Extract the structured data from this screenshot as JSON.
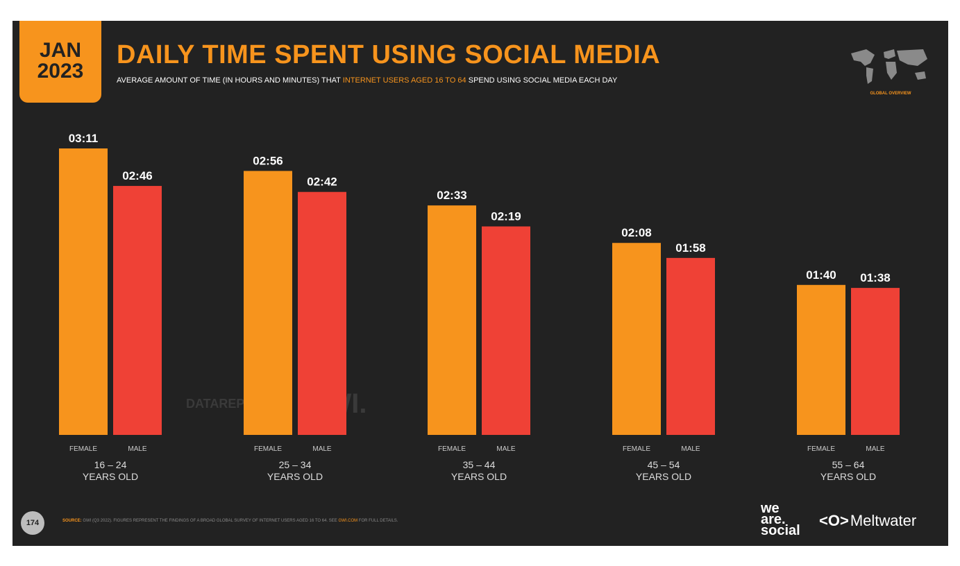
{
  "header": {
    "date_month": "JAN",
    "date_year": "2023",
    "title": "DAILY TIME SPENT USING SOCIAL MEDIA",
    "subtitle_pre": "AVERAGE AMOUNT OF TIME (IN HOURS AND MINUTES) THAT ",
    "subtitle_highlight": "INTERNET USERS AGED 16 TO 64",
    "subtitle_post": " SPEND USING SOCIAL MEDIA EACH DAY",
    "global_overview": "GLOBAL OVERVIEW"
  },
  "watermark": {
    "datareportal": "DATAREPORTAL",
    "gwi": "GWI."
  },
  "footer": {
    "page_number": "174",
    "source_label": "SOURCE:",
    "source_text": " GWI (Q3 2022). FIGURES REPRESENT THE FINDINGS OF A BROAD GLOBAL SURVEY OF INTERNET USERS AGED 16 TO 64. SEE ",
    "source_link": "GWI.COM",
    "source_end": " FOR FULL DETAILS.",
    "brand_we": "we",
    "brand_are": "are.",
    "brand_social": "social",
    "meltwater_icon": "<O>",
    "meltwater": "Meltwater"
  },
  "colors": {
    "female": "#f7941d",
    "male": "#ef4136",
    "background": "#222222",
    "accent": "#f7941d"
  },
  "icons": {
    "map": "world-map-icon"
  },
  "chart_data": {
    "type": "bar",
    "categories": [
      "16 – 24",
      "25 – 34",
      "35 – 44",
      "45 – 54",
      "55 – 64"
    ],
    "category_sub": "YEARS OLD",
    "series": [
      {
        "name": "FEMALE",
        "values": [
          191,
          176,
          153,
          128,
          100
        ],
        "labels": [
          "03:11",
          "02:56",
          "02:33",
          "02:08",
          "01:40"
        ]
      },
      {
        "name": "MALE",
        "values": [
          166,
          162,
          139,
          118,
          98
        ],
        "labels": [
          "02:46",
          "02:42",
          "02:19",
          "01:58",
          "01:38"
        ]
      }
    ],
    "unit": "minutes",
    "ylim": [
      0,
      191
    ]
  }
}
